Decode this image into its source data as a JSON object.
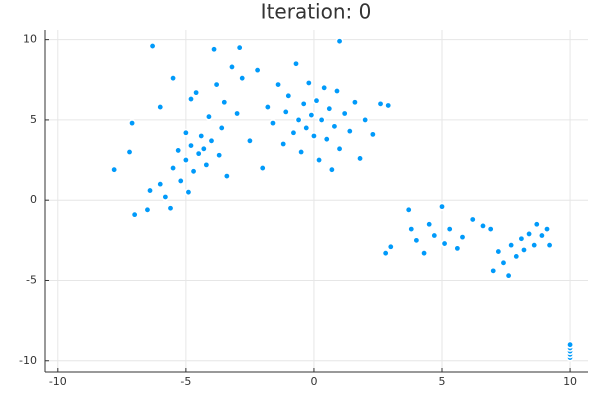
{
  "chart_data": {
    "type": "scatter",
    "title": "Iteration: 0",
    "series": [
      {
        "color": "#009afa",
        "x": [
          -7.8,
          -7.2,
          -7.1,
          -7,
          -6.5,
          -6.4,
          -6.3,
          -6,
          -6,
          -5.8,
          -5.6,
          -5.5,
          -5.5,
          -5.3,
          -5.2,
          -5,
          -5,
          -4.9,
          -4.8,
          -4.7,
          -4.6,
          -4.5,
          -4.4,
          -4.3,
          -4.2,
          -4.1,
          -4,
          -3.9,
          -3.8,
          -3.7,
          -3.6,
          -3.5,
          -3.4,
          -3.2,
          -3,
          -2.9,
          -2.8,
          -2.5,
          -2.2,
          -4.8,
          -2,
          -1.8,
          -1.6,
          -1.4,
          -1.2,
          -1.1,
          -1,
          -0.8,
          -0.7,
          -0.6,
          -0.5,
          -0.4,
          -0.3,
          -0.2,
          -0.1,
          0,
          0.1,
          0.2,
          0.3,
          0.4,
          0.5,
          0.6,
          0.7,
          0.8,
          0.9,
          1,
          1,
          1.2,
          1.4,
          1.6,
          1.8,
          2,
          2.3,
          2.6,
          2.9,
          2.8,
          3,
          3.7,
          3.8,
          4,
          4.3,
          4.5,
          4.7,
          5,
          5.1,
          5.3,
          5.6,
          5.8,
          6.2,
          6.6,
          6.9,
          7,
          7.2,
          7.4,
          7.6,
          7.7,
          7.9,
          8.1,
          8.2,
          8.4,
          8.6,
          8.7,
          8.9,
          9.1,
          9.2,
          10,
          10,
          10,
          10,
          10
        ],
        "values": [
          1.9,
          3,
          4.8,
          -0.9,
          -0.6,
          0.6,
          9.6,
          1,
          5.8,
          0.2,
          -0.5,
          7.6,
          2,
          3.1,
          1.2,
          2.5,
          4.2,
          0.5,
          3.4,
          1.8,
          6.7,
          2.9,
          4,
          3.2,
          2.2,
          5.2,
          3.7,
          9.4,
          7.2,
          2.8,
          4.5,
          6.1,
          1.5,
          8.3,
          5.4,
          9.5,
          7.6,
          3.7,
          8.1,
          6.3,
          2,
          5.8,
          4.8,
          7.2,
          3.5,
          5.5,
          6.5,
          4.2,
          8.5,
          5,
          3,
          6,
          4.5,
          7.3,
          5.3,
          4,
          6.2,
          2.5,
          5,
          7,
          3.8,
          5.7,
          1.9,
          4.6,
          6.8,
          9.9,
          3.2,
          5.4,
          4.3,
          6.1,
          2.6,
          5,
          4.1,
          6,
          5.9,
          -3.3,
          -2.9,
          -0.6,
          -1.8,
          -2.5,
          -3.3,
          -1.5,
          -2.2,
          -0.4,
          -2.7,
          -1.8,
          -3,
          -2.3,
          -1.2,
          -1.6,
          -1.8,
          -4.4,
          -3.2,
          -3.9,
          -4.7,
          -2.8,
          -3.5,
          -2.4,
          -3.1,
          -2.1,
          -2.8,
          -1.5,
          -2.2,
          -1.8,
          -2.8,
          -9.8,
          -9.6,
          -9.4,
          -9.2,
          -9
        ]
      }
    ],
    "xlim": [
      -10.5,
      10.7
    ],
    "ylim": [
      -10.7,
      10.6
    ],
    "xticks": [
      -10,
      -5,
      0,
      5,
      10
    ],
    "yticks": [
      -10,
      -5,
      0,
      5,
      10
    ],
    "grid": true
  }
}
